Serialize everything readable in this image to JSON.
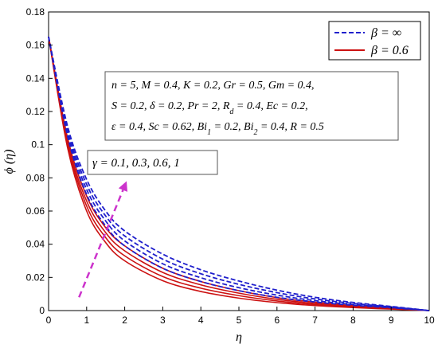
{
  "chart_data": {
    "type": "line",
    "title": "",
    "xlabel": "η",
    "ylabel": "ϕ (η)",
    "xlim": [
      0,
      10
    ],
    "ylim": [
      0,
      0.18
    ],
    "xticks": [
      "0",
      "1",
      "2",
      "3",
      "4",
      "5",
      "6",
      "7",
      "8",
      "9",
      "10"
    ],
    "yticks": [
      "0",
      "0.02",
      "0.04",
      "0.06",
      "0.08",
      "0.1",
      "0.12",
      "0.14",
      "0.16",
      "0.18"
    ],
    "grid": false,
    "legend": {
      "position": "top-right",
      "entries": [
        {
          "label": "β = ∞",
          "color": "#1f1fcc",
          "style": "dashed"
        },
        {
          "label": "β = 0.6",
          "color": "#cc1111",
          "style": "solid"
        }
      ]
    },
    "annotations": {
      "params_lines": [
        "n = 5, M = 0.4, K = 0.2, Gr = 0.5, Gm = 0.4,",
        "S = 0.2, δ = 0.2, Pr = 2, R_d = 0.4, Ec = 0.2,",
        "ε = 0.4, Sc = 0.62, Bi_1 = 0.2, Bi_2 = 0.4, R = 0.5"
      ],
      "gamma_label": "γ = 0.1, 0.3, 0.6, 1",
      "arrow": {
        "from": [
          0.8,
          0.008
        ],
        "to": [
          2.05,
          0.078
        ],
        "color": "#cc33cc"
      }
    },
    "series": [
      {
        "group": "β = ∞",
        "gamma": 0.1,
        "x": [
          0,
          0.5,
          1,
          1.5,
          2,
          3,
          4,
          5,
          6,
          7,
          8,
          9,
          10
        ],
        "y": [
          0.165,
          0.105,
          0.07,
          0.051,
          0.039,
          0.0255,
          0.0175,
          0.012,
          0.008,
          0.0052,
          0.0032,
          0.0017,
          0
        ]
      },
      {
        "group": "β = ∞",
        "gamma": 0.3,
        "x": [
          0,
          0.5,
          1,
          1.5,
          2,
          3,
          4,
          5,
          6,
          7,
          8,
          9,
          10
        ],
        "y": [
          0.165,
          0.107,
          0.073,
          0.054,
          0.042,
          0.0282,
          0.0198,
          0.0138,
          0.0093,
          0.006,
          0.0037,
          0.0019,
          0
        ]
      },
      {
        "group": "β = ∞",
        "gamma": 0.6,
        "x": [
          0,
          0.5,
          1,
          1.5,
          2,
          3,
          4,
          5,
          6,
          7,
          8,
          9,
          10
        ],
        "y": [
          0.165,
          0.109,
          0.076,
          0.057,
          0.045,
          0.031,
          0.0222,
          0.0158,
          0.0108,
          0.007,
          0.0043,
          0.0022,
          0
        ]
      },
      {
        "group": "β = ∞",
        "gamma": 1,
        "x": [
          0,
          0.5,
          1,
          1.5,
          2,
          3,
          4,
          5,
          6,
          7,
          8,
          9,
          10
        ],
        "y": [
          0.165,
          0.111,
          0.079,
          0.06,
          0.048,
          0.034,
          0.0246,
          0.0178,
          0.0123,
          0.008,
          0.0049,
          0.0025,
          0
        ]
      },
      {
        "group": "β = 0.6",
        "gamma": 0.1,
        "x": [
          0,
          0.5,
          1,
          1.5,
          2,
          3,
          4,
          5,
          6,
          7,
          8,
          9,
          10
        ],
        "y": [
          0.165,
          0.098,
          0.06,
          0.041,
          0.03,
          0.018,
          0.0115,
          0.0075,
          0.0048,
          0.003,
          0.0018,
          0.0009,
          0
        ]
      },
      {
        "group": "β = 0.6",
        "gamma": 0.3,
        "x": [
          0,
          0.5,
          1,
          1.5,
          2,
          3,
          4,
          5,
          6,
          7,
          8,
          9,
          10
        ],
        "y": [
          0.165,
          0.1,
          0.063,
          0.044,
          0.033,
          0.0205,
          0.0135,
          0.009,
          0.0058,
          0.0036,
          0.0022,
          0.0011,
          0
        ]
      },
      {
        "group": "β = 0.6",
        "gamma": 0.6,
        "x": [
          0,
          0.5,
          1,
          1.5,
          2,
          3,
          4,
          5,
          6,
          7,
          8,
          9,
          10
        ],
        "y": [
          0.165,
          0.102,
          0.066,
          0.047,
          0.036,
          0.023,
          0.0155,
          0.0105,
          0.0068,
          0.0043,
          0.0026,
          0.0013,
          0
        ]
      },
      {
        "group": "β = 0.6",
        "gamma": 1,
        "x": [
          0,
          0.5,
          1,
          1.5,
          2,
          3,
          4,
          5,
          6,
          7,
          8,
          9,
          10
        ],
        "y": [
          0.165,
          0.104,
          0.069,
          0.05,
          0.039,
          0.0255,
          0.0175,
          0.012,
          0.0078,
          0.005,
          0.003,
          0.0015,
          0
        ]
      }
    ]
  }
}
